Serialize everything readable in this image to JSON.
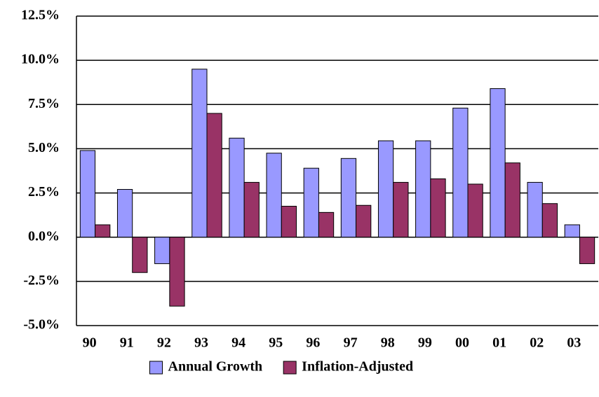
{
  "chart_data": {
    "type": "bar",
    "categories": [
      "90",
      "91",
      "92",
      "93",
      "94",
      "95",
      "96",
      "97",
      "98",
      "99",
      "00",
      "01",
      "02",
      "03"
    ],
    "series": [
      {
        "name": "Annual Growth",
        "color": "#9999ff",
        "values": [
          4.9,
          2.7,
          -1.5,
          9.5,
          5.6,
          4.75,
          3.9,
          4.45,
          5.45,
          5.45,
          7.3,
          8.4,
          3.1,
          0.7
        ]
      },
      {
        "name": "Inflation-Adjusted",
        "color": "#993366",
        "values": [
          0.7,
          -2.0,
          -3.9,
          7.0,
          3.1,
          1.75,
          1.4,
          1.8,
          3.1,
          3.3,
          3.0,
          4.2,
          1.9,
          -1.5
        ]
      }
    ],
    "ylim": [
      -5,
      12.5
    ],
    "yticks": [
      {
        "value": -5,
        "label": "-5.0%"
      },
      {
        "value": -2.5,
        "label": "-2.5%"
      },
      {
        "value": 0,
        "label": "0.0%"
      },
      {
        "value": 2.5,
        "label": "2.5%"
      },
      {
        "value": 5,
        "label": "5.0%"
      },
      {
        "value": 7.5,
        "label": "7.5%"
      },
      {
        "value": 10,
        "label": "10.0%"
      },
      {
        "value": 12.5,
        "label": "12.5%"
      }
    ],
    "grid": true,
    "legend": "bottom"
  }
}
